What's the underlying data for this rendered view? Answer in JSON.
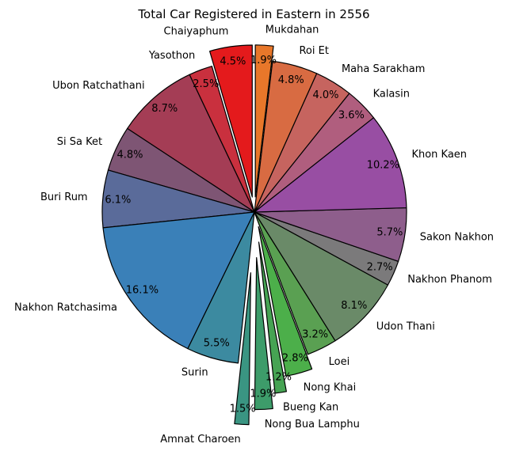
{
  "chart_data": {
    "type": "pie",
    "title": "Total Car Registered in Eastern in 2556",
    "start_angle_deg": 90,
    "direction": "counterclockwise",
    "categories": [
      "Chaiyaphum",
      "Yasothon",
      "Ubon Ratchathani",
      "Si Sa Ket",
      "Buri Rum",
      "Nakhon Ratchasima",
      "Surin",
      "Amnat Charoen",
      "Nong Bua Lamphu",
      "Bueng Kan",
      "Nong Khai",
      "Loei",
      "Udon Thani",
      "Nakhon Phanom",
      "Sakon Nakhon",
      "Khon Kaen",
      "Kalasin",
      "Maha Sarakham",
      "Roi Et",
      "Mukdahan"
    ],
    "values": [
      4.5,
      2.5,
      8.7,
      4.8,
      6.1,
      16.1,
      5.5,
      1.5,
      1.9,
      1.2,
      2.8,
      3.2,
      8.1,
      2.7,
      5.7,
      10.2,
      3.6,
      4.0,
      4.8,
      1.9
    ],
    "value_labels": [
      "4.5%",
      "2.5%",
      "8.7%",
      "4.8%",
      "6.1%",
      "16.1%",
      "5.5%",
      "1.5%",
      "1.9%",
      "1.2%",
      "2.8%",
      "3.2%",
      "8.1%",
      "2.7%",
      "5.7%",
      "10.2%",
      "3.6%",
      "4.0%",
      "4.8%",
      "1.9%"
    ],
    "explode": [
      0.1,
      0,
      0,
      0,
      0,
      0,
      0,
      0.4,
      0.3,
      0.2,
      0.1,
      0,
      0,
      0,
      0,
      0,
      0,
      0,
      0,
      0.1
    ],
    "colors": [
      "#e41a1c",
      "#c9303e",
      "#a43d55",
      "#7e5574",
      "#5a6b9a",
      "#3a80b8",
      "#3c8aa0",
      "#3a9582",
      "#3d9c6a",
      "#46a353",
      "#4caf4a",
      "#5aa052",
      "#6a8a68",
      "#7b7a7b",
      "#8e5e8c",
      "#984ea3",
      "#b05e7e",
      "#c6645f",
      "#d86b42",
      "#e8772a"
    ],
    "edge_color": "#000000",
    "legend": "none"
  }
}
